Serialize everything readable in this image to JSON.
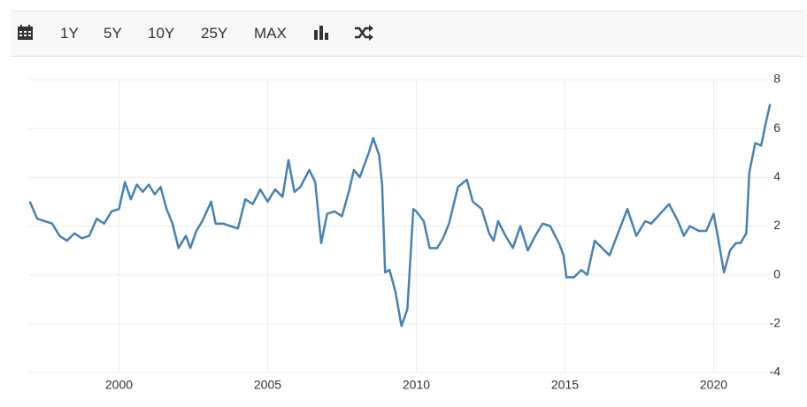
{
  "toolbar": {
    "buttons": [
      "1Y",
      "5Y",
      "10Y",
      "25Y",
      "MAX"
    ]
  },
  "chart_data": {
    "type": "line",
    "color": "#4682b4",
    "grid": true,
    "xlim": [
      1996.95,
      2021.95
    ],
    "xticks": [
      2000,
      2005,
      2010,
      2015,
      2020
    ],
    "ylim": [
      -4,
      8
    ],
    "yticks": [
      -4,
      -2,
      0,
      2,
      4,
      6,
      8
    ],
    "x": [
      1997.0,
      1997.25,
      1997.5,
      1997.75,
      1998.0,
      1998.25,
      1998.5,
      1998.75,
      1999.0,
      1999.25,
      1999.5,
      1999.75,
      2000.0,
      2000.2,
      2000.4,
      2000.6,
      2000.8,
      2001.0,
      2001.2,
      2001.4,
      2001.6,
      2001.8,
      2002.0,
      2002.25,
      2002.4,
      2002.6,
      2002.8,
      2003.1,
      2003.25,
      2003.5,
      2003.75,
      2004.0,
      2004.25,
      2004.5,
      2004.75,
      2005.0,
      2005.25,
      2005.5,
      2005.7,
      2005.9,
      2006.1,
      2006.4,
      2006.6,
      2006.8,
      2007.0,
      2007.25,
      2007.5,
      2007.75,
      2007.9,
      2008.1,
      2008.4,
      2008.55,
      2008.75,
      2008.85,
      2008.95,
      2009.1,
      2009.3,
      2009.5,
      2009.7,
      2009.9,
      2010.0,
      2010.25,
      2010.45,
      2010.7,
      2010.9,
      2011.1,
      2011.4,
      2011.7,
      2011.9,
      2012.2,
      2012.45,
      2012.6,
      2012.75,
      2013.0,
      2013.25,
      2013.5,
      2013.75,
      2014.0,
      2014.25,
      2014.5,
      2014.8,
      2014.95,
      2015.05,
      2015.3,
      2015.55,
      2015.75,
      2016.0,
      2016.25,
      2016.5,
      2016.75,
      2017.1,
      2017.4,
      2017.7,
      2017.9,
      2018.2,
      2018.5,
      2018.8,
      2019.0,
      2019.2,
      2019.5,
      2019.75,
      2020.0,
      2020.15,
      2020.35,
      2020.55,
      2020.75,
      2020.9,
      2021.1,
      2021.2,
      2021.4,
      2021.6,
      2021.75,
      2021.9
    ],
    "values": [
      3.0,
      2.3,
      2.2,
      2.1,
      1.6,
      1.4,
      1.7,
      1.5,
      1.6,
      2.3,
      2.1,
      2.6,
      2.7,
      3.8,
      3.1,
      3.7,
      3.4,
      3.7,
      3.3,
      3.6,
      2.7,
      2.1,
      1.1,
      1.6,
      1.1,
      1.8,
      2.2,
      3.0,
      2.1,
      2.1,
      2.0,
      1.9,
      3.1,
      2.9,
      3.5,
      3.0,
      3.5,
      3.2,
      4.7,
      3.4,
      3.6,
      4.3,
      3.8,
      1.3,
      2.5,
      2.6,
      2.4,
      3.5,
      4.3,
      4.0,
      5.0,
      5.6,
      4.9,
      3.7,
      0.1,
      0.2,
      -0.7,
      -2.1,
      -1.4,
      2.7,
      2.6,
      2.2,
      1.1,
      1.1,
      1.5,
      2.1,
      3.6,
      3.9,
      3.0,
      2.7,
      1.7,
      1.4,
      2.2,
      1.6,
      1.1,
      2.0,
      1.0,
      1.6,
      2.1,
      2.0,
      1.3,
      0.8,
      -0.1,
      -0.1,
      0.2,
      0.0,
      1.4,
      1.1,
      0.8,
      1.6,
      2.7,
      1.6,
      2.2,
      2.1,
      2.5,
      2.9,
      2.2,
      1.6,
      2.0,
      1.8,
      1.8,
      2.5,
      1.5,
      0.1,
      1.0,
      1.3,
      1.3,
      1.7,
      4.2,
      5.4,
      5.3,
      6.2,
      7.0
    ]
  }
}
